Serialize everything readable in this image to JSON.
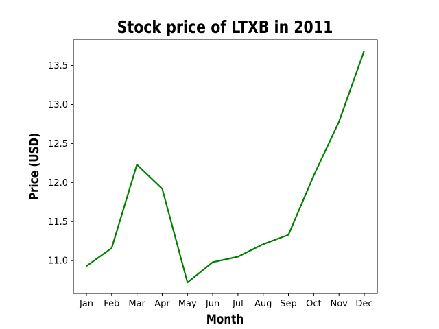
{
  "chart_data": {
    "type": "line",
    "title": "Stock price of LTXB in 2011",
    "xlabel": "Month",
    "ylabel": "Price (USD)",
    "categories": [
      "Jan",
      "Feb",
      "Mar",
      "Apr",
      "May",
      "Jun",
      "Jul",
      "Aug",
      "Sep",
      "Oct",
      "Nov",
      "Dec"
    ],
    "series": [
      {
        "values": [
          10.93,
          11.16,
          12.23,
          11.92,
          10.72,
          10.98,
          11.05,
          11.21,
          11.33,
          12.09,
          12.78,
          13.69
        ],
        "color": "#008000"
      }
    ],
    "ylim": [
      10.58,
      13.83
    ],
    "yticks": [
      "11.0",
      "11.5",
      "12.0",
      "12.5",
      "13.0",
      "13.5"
    ],
    "ytick_values": [
      11.0,
      11.5,
      12.0,
      12.5,
      13.0,
      13.5
    ],
    "grid": false,
    "legend": "none"
  }
}
